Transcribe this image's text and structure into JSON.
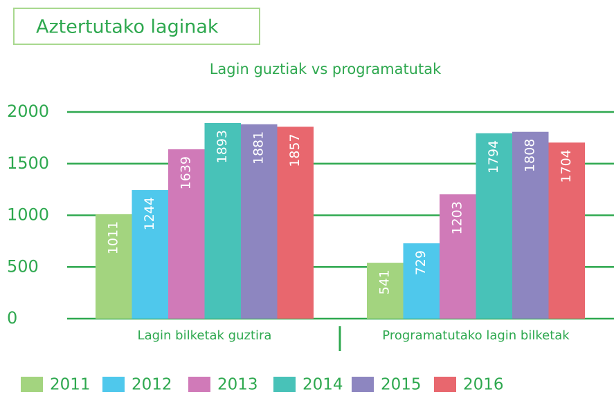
{
  "chart_data": {
    "type": "bar",
    "header": "Aztertutako laginak",
    "title": "Lagin guztiak  vs programatutak",
    "categories": [
      "Lagin bilketak guztira",
      "Programatutako lagin bilketak"
    ],
    "series": [
      {
        "name": "2011",
        "color": "#a3d47f",
        "values": [
          1011,
          541
        ]
      },
      {
        "name": "2012",
        "color": "#4fc8ec",
        "values": [
          1244,
          729
        ]
      },
      {
        "name": "2013",
        "color": "#d07ab8",
        "values": [
          1639,
          1203
        ]
      },
      {
        "name": "2014",
        "color": "#48c2b8",
        "values": [
          1893,
          1794
        ]
      },
      {
        "name": "2015",
        "color": "#8d86c0",
        "values": [
          1881,
          1808
        ]
      },
      {
        "name": "2016",
        "color": "#e8676e",
        "values": [
          1857,
          1704
        ]
      }
    ],
    "ylim": [
      0,
      2000
    ],
    "yticks": [
      0,
      500,
      1000,
      1500,
      2000
    ],
    "grid": true,
    "legend": "bottom"
  }
}
